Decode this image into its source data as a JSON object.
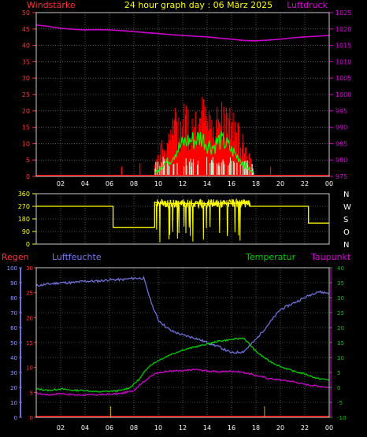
{
  "title": "24 hour graph day : 06 März 2025",
  "labels": {
    "wind_left": "Windstärke",
    "pressure_right": "Luftdruck",
    "rain": "Regen",
    "humidity": "Luftfeuchte",
    "temperature": "Temperatur",
    "dewpoint": "Taupunkt"
  },
  "colors": {
    "background": "#000000",
    "grid": "#8a8a8a",
    "wind": "#ff0000",
    "gust_avg": "#00ff00",
    "calm": "#c8e6c8",
    "pressure": "#cc00cc",
    "direction": "#ffff00",
    "humidity": "#6f6fd8",
    "temperature": "#00cc00",
    "dewpoint": "#cc00cc",
    "rain": "#ff0000",
    "axis_text_left": "#ff3333",
    "axis_text_right": "#dd00dd",
    "axis_text_rain": "#ff3333",
    "axis_text_hum": "#9999ff",
    "axis_text_temp": "#00cc00",
    "hours": "#ffffff"
  },
  "chart_data": [
    {
      "type": "bar",
      "name": "wind",
      "x_hours": [
        "02",
        "04",
        "06",
        "08",
        "10",
        "12",
        "14",
        "16",
        "18",
        "20",
        "22",
        "00"
      ],
      "y_left": {
        "label": "Windstärke",
        "ticks": [
          "0",
          "5",
          "10",
          "15",
          "20",
          "25",
          "30",
          "35",
          "40",
          "45",
          "50"
        ],
        "ylim": [
          0,
          50
        ]
      },
      "y_right": {
        "label": "Luftdruck",
        "ticks": [
          "975",
          "980",
          "985",
          "990",
          "995",
          "1000",
          "1005",
          "1010",
          "1015",
          "1020",
          "1025"
        ],
        "ylim": [
          975,
          1025
        ]
      },
      "pressure": [
        [
          0,
          1021.2
        ],
        [
          1,
          1020.8
        ],
        [
          2,
          1020.2
        ],
        [
          3,
          1019.9
        ],
        [
          4,
          1019.7
        ],
        [
          5,
          1019.8
        ],
        [
          6,
          1019.7
        ],
        [
          7,
          1019.5
        ],
        [
          8,
          1019.2
        ],
        [
          9,
          1018.9
        ],
        [
          10,
          1018.6
        ],
        [
          11,
          1018.3
        ],
        [
          12,
          1018.0
        ],
        [
          13,
          1017.8
        ],
        [
          14,
          1017.6
        ],
        [
          15,
          1017.2
        ],
        [
          16,
          1016.9
        ],
        [
          17,
          1016.5
        ],
        [
          18,
          1016.4
        ],
        [
          19,
          1016.6
        ],
        [
          20,
          1016.9
        ],
        [
          21,
          1017.3
        ],
        [
          22,
          1017.6
        ],
        [
          23,
          1017.8
        ],
        [
          24,
          1018.0
        ]
      ],
      "wind_envelope": [
        [
          9.7,
          5
        ],
        [
          10,
          8
        ],
        [
          10.5,
          12
        ],
        [
          11,
          17
        ],
        [
          11.5,
          20
        ],
        [
          12,
          22
        ],
        [
          12.5,
          21
        ],
        [
          13,
          22
        ],
        [
          13.5,
          24
        ],
        [
          14,
          22
        ],
        [
          14.5,
          20
        ],
        [
          15,
          23
        ],
        [
          15.5,
          21
        ],
        [
          16,
          19
        ],
        [
          16.5,
          16
        ],
        [
          17,
          13
        ],
        [
          17.5,
          6
        ],
        [
          17.8,
          2
        ]
      ],
      "wind_avg": [
        [
          9.7,
          1
        ],
        [
          10,
          2
        ],
        [
          10.5,
          4
        ],
        [
          11,
          5
        ],
        [
          11.5,
          8
        ],
        [
          12,
          10
        ],
        [
          12.5,
          11
        ],
        [
          13,
          11
        ],
        [
          13.5,
          12
        ],
        [
          14,
          10
        ],
        [
          14.5,
          9
        ],
        [
          15,
          11
        ],
        [
          15.5,
          10
        ],
        [
          16,
          8
        ],
        [
          16.5,
          6
        ],
        [
          17,
          4
        ],
        [
          17.5,
          2
        ],
        [
          17.8,
          1
        ]
      ],
      "isolated_spikes": [
        [
          7,
          3
        ],
        [
          8.5,
          4
        ],
        [
          19.2,
          3
        ],
        [
          17.6,
          5
        ]
      ]
    },
    {
      "type": "line",
      "name": "direction",
      "y_left": {
        "ticks": [
          "0",
          "90",
          "180",
          "270",
          "360"
        ],
        "ylim": [
          0,
          360
        ]
      },
      "y_right_labels": [
        "N",
        "W",
        "S",
        "O",
        "N"
      ],
      "values": [
        [
          0,
          270
        ],
        [
          6.3,
          270
        ],
        [
          6.3,
          120
        ],
        [
          8.5,
          120
        ],
        [
          9.7,
          120
        ],
        [
          9.7,
          300
        ],
        [
          10,
          290
        ],
        [
          17.5,
          290
        ],
        [
          17.5,
          270
        ],
        [
          22.3,
          270
        ],
        [
          22.3,
          150
        ],
        [
          24,
          150
        ]
      ]
    },
    {
      "type": "line",
      "name": "temperature_humidity_rain",
      "y_left_rain": {
        "label": "Regen",
        "ticks": [
          "0",
          "5",
          "10",
          "15",
          "20",
          "25",
          "30"
        ],
        "ylim": [
          0,
          30
        ]
      },
      "y_left_hum": {
        "label": "Luftfeuchte",
        "ticks": [
          "0",
          "10",
          "20",
          "30",
          "40",
          "50",
          "60",
          "70",
          "80",
          "90",
          "100"
        ],
        "ylim": [
          0,
          100
        ]
      },
      "y_right_temp": {
        "label": "Temperatur",
        "ticks": [
          "-10",
          "-5",
          "0",
          "5",
          "10",
          "15",
          "20",
          "25",
          "30",
          "35",
          "40"
        ],
        "ylim": [
          -10,
          40
        ]
      },
      "humidity": [
        [
          0,
          88
        ],
        [
          1,
          89
        ],
        [
          2,
          90
        ],
        [
          3,
          90
        ],
        [
          4,
          91
        ],
        [
          5,
          91
        ],
        [
          6,
          92
        ],
        [
          7,
          92
        ],
        [
          8,
          93
        ],
        [
          8.8,
          93
        ],
        [
          9.5,
          75
        ],
        [
          10,
          65
        ],
        [
          11,
          58
        ],
        [
          12,
          55
        ],
        [
          13,
          53
        ],
        [
          14,
          50
        ],
        [
          15,
          47
        ],
        [
          16,
          43
        ],
        [
          17,
          44
        ],
        [
          18,
          52
        ],
        [
          19,
          62
        ],
        [
          20,
          72
        ],
        [
          21,
          76
        ],
        [
          22,
          80
        ],
        [
          23,
          84
        ],
        [
          24,
          83
        ]
      ],
      "temperature": [
        [
          0,
          -0.5
        ],
        [
          1,
          -1
        ],
        [
          2,
          -0.5
        ],
        [
          3,
          -1
        ],
        [
          4,
          -1
        ],
        [
          5,
          -1.5
        ],
        [
          6,
          -1.3
        ],
        [
          7,
          -1
        ],
        [
          7.7,
          0
        ],
        [
          8.5,
          3
        ],
        [
          9.2,
          7
        ],
        [
          10,
          9
        ],
        [
          11,
          11
        ],
        [
          12,
          12.5
        ],
        [
          13,
          13.5
        ],
        [
          14,
          14.5
        ],
        [
          15,
          15.5
        ],
        [
          16,
          16
        ],
        [
          17,
          16.5
        ],
        [
          18,
          12
        ],
        [
          19,
          9
        ],
        [
          20,
          7
        ],
        [
          21,
          5.5
        ],
        [
          22,
          4.5
        ],
        [
          23,
          3
        ],
        [
          24,
          2.5
        ]
      ],
      "dewpoint": [
        [
          0,
          -2
        ],
        [
          1,
          -2.5
        ],
        [
          2,
          -2
        ],
        [
          3,
          -2.5
        ],
        [
          4,
          -2.5
        ],
        [
          5,
          -2.5
        ],
        [
          6,
          -2.3
        ],
        [
          7,
          -2
        ],
        [
          8,
          -1
        ],
        [
          8.5,
          1
        ],
        [
          9.5,
          4
        ],
        [
          10,
          5
        ],
        [
          11,
          5.5
        ],
        [
          12,
          5.5
        ],
        [
          13,
          6
        ],
        [
          14,
          5.5
        ],
        [
          15,
          5.2
        ],
        [
          16,
          5.5
        ],
        [
          17,
          5
        ],
        [
          18,
          4
        ],
        [
          19,
          3
        ],
        [
          20,
          2.5
        ],
        [
          21,
          2
        ],
        [
          22,
          1
        ],
        [
          23,
          0.5
        ],
        [
          24,
          0
        ]
      ],
      "rain_ticks_at": [
        6.1,
        18.7
      ]
    }
  ]
}
